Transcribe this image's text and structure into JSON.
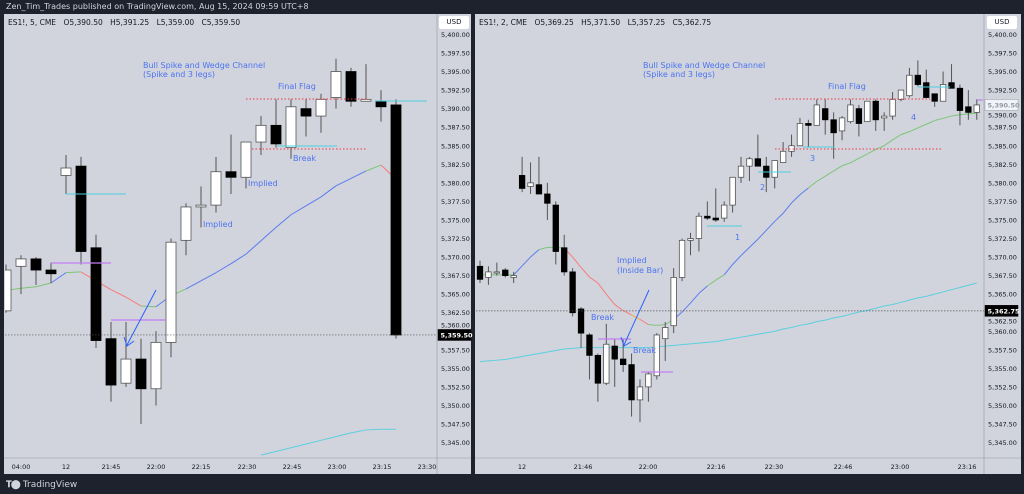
{
  "header": {
    "publisher": "Zen_Tim_Trades published on TradingView.com, Aug 15, 2024 09:59 UTC+8"
  },
  "footer": {
    "brand": "TradingView"
  },
  "colors": {
    "bull_candle": "#ffffff",
    "bear_candle": "#000000",
    "annotation": "#4c73f0",
    "resistance_dotted": "#f23645",
    "support_line": "#4dd0e1",
    "inside_bar_line": "#c27cf5",
    "slow_ma": "#5ccfe0",
    "ema_up": "#7cc576",
    "ema_fast_up": "#5b7cf0",
    "ema_down": "#f77c7c",
    "ema_flat": "#f5a742",
    "background": "#d1d4dc"
  },
  "chart_data": [
    {
      "type": "candlestick",
      "legend": {
        "symbol": "ES1!, 5, CME",
        "open": "O5,390.50",
        "high": "H5,391.25",
        "low": "L5,359.00",
        "close": "C5,359.50"
      },
      "currency": "USD",
      "ylim": [
        5343.5,
        5401
      ],
      "y_ticks": [
        "5,400.00",
        "5,397.50",
        "5,395.00",
        "5,392.50",
        "5,390.00",
        "5,387.50",
        "5,385.00",
        "5,382.50",
        "5,380.00",
        "5,377.50",
        "5,375.00",
        "5,372.50",
        "5,370.00",
        "5,367.50",
        "5,365.00",
        "5,362.50",
        "5,360.00",
        "5,357.50",
        "5,355.00",
        "5,352.50",
        "5,350.00",
        "5,347.50",
        "5,345.00"
      ],
      "x_ticks": [
        "04:00",
        "12",
        "21:45",
        "22:00",
        "22:15",
        "22:30",
        "22:45",
        "23:00",
        "23:15",
        "23:30"
      ],
      "last_price": "5,359.50",
      "last_price_value": 5359.5,
      "candles_ohlc": [
        [
          5362.75,
          5369,
          5362.5,
          5368.25
        ],
        [
          5368.75,
          5370.25,
          5365,
          5369.75
        ],
        [
          5369.75,
          5370,
          5366.25,
          5368.25
        ],
        [
          5368.25,
          5369.25,
          5366.5,
          5367.75
        ],
        [
          5381,
          5383.75,
          5378.5,
          5382
        ],
        [
          5382.25,
          5383.5,
          5369,
          5370.75
        ],
        [
          5371.25,
          5373,
          5357.75,
          5358.75
        ],
        [
          5359,
          5361.25,
          5350.5,
          5352.75
        ],
        [
          5353,
          5361.25,
          5352.5,
          5356.25
        ],
        [
          5356.25,
          5359,
          5347.5,
          5352.25
        ],
        [
          5352.25,
          5360,
          5350,
          5358.5
        ],
        [
          5358.5,
          5372.5,
          5356.5,
          5372
        ],
        [
          5372.25,
          5377.25,
          5370.25,
          5376.75
        ],
        [
          5376.75,
          5379.5,
          5374,
          5377
        ],
        [
          5377,
          5383.5,
          5376,
          5381.5
        ],
        [
          5381.5,
          5386.5,
          5378.5,
          5380.75
        ],
        [
          5380.75,
          5385.5,
          5379.25,
          5385.5
        ],
        [
          5385.5,
          5389,
          5383.75,
          5387.75
        ],
        [
          5387.75,
          5391.25,
          5384.75,
          5385.25
        ],
        [
          5384.75,
          5391.25,
          5383.25,
          5390.25
        ],
        [
          5390,
          5391.25,
          5386.25,
          5389
        ],
        [
          5389,
          5392,
          5386.75,
          5391.25
        ],
        [
          5391.5,
          5396.75,
          5390,
          5395
        ],
        [
          5395,
          5395.5,
          5390.25,
          5391
        ],
        [
          5391,
          5396,
          5391,
          5391.25
        ],
        [
          5391,
          5392.5,
          5388.25,
          5390.25
        ],
        [
          5390.5,
          5391.25,
          5359,
          5359.5
        ]
      ],
      "ema": [
        5365.5,
        5365.8,
        5366,
        5366.5,
        5367.9,
        5368,
        5366.8,
        5365.6,
        5364.6,
        5363.4,
        5363.3,
        5364.8,
        5365.7,
        5366.8,
        5367.9,
        5369.1,
        5370.4,
        5372.2,
        5374,
        5375.7,
        5376.9,
        5378.1,
        5379.6,
        5380.6,
        5381.6,
        5382.4,
        5380.5
      ],
      "slow_ma": [
        null,
        null,
        null,
        null,
        null,
        null,
        null,
        null,
        null,
        null,
        null,
        null,
        null,
        null,
        null,
        null,
        null,
        5343.3,
        5343.8,
        5344.3,
        5344.8,
        5345.3,
        5345.8,
        5346.3,
        5346.7,
        5346.8,
        5346.8
      ],
      "annotations": {
        "title": "Bull Spike and Wedge Channel",
        "subtitle": "(Spike and 3 legs)",
        "final_flag": "Final Flag",
        "break": "Break",
        "implied_1": "Implied",
        "implied_2": "Implied"
      }
    },
    {
      "type": "candlestick",
      "legend": {
        "symbol": "ES1!, 2, CME",
        "open": "O5,369.25",
        "high": "H5,371.50",
        "low": "L5,357.25",
        "close": "C5,362.75"
      },
      "currency": "USD",
      "ylim": [
        5343.5,
        5401
      ],
      "y_ticks": [
        "5,400.00",
        "5,397.50",
        "5,395.00",
        "5,392.50",
        "5,390.00",
        "5,387.50",
        "5,385.00",
        "5,382.50",
        "5,380.00",
        "5,377.50",
        "5,375.00",
        "5,372.50",
        "5,370.00",
        "5,367.50",
        "5,365.00",
        "5,362.50",
        "5,360.00",
        "5,357.50",
        "5,355.00",
        "5,352.50",
        "5,350.00",
        "5,347.50",
        "5,345.00"
      ],
      "x_ticks": [
        "12",
        "21:46",
        "22:00",
        "22:16",
        "22:30",
        "22:46",
        "23:00",
        "23:16"
      ],
      "crosshair_price": "5,362.75",
      "crosshair_price_value": 5362.75,
      "last_price": "5,390.50",
      "last_price_value": 5390.5,
      "candles_ohlc": [
        [
          5368.75,
          5369.5,
          5366.5,
          5367
        ],
        [
          5367.25,
          5368.75,
          5366.25,
          5368
        ],
        [
          5368,
          5369.25,
          5367.5,
          5368
        ],
        [
          5368.25,
          5368.5,
          5367.25,
          5367.5
        ],
        [
          5367.25,
          5368,
          5366.5,
          5367.5
        ],
        [
          5381,
          5383.5,
          5378.75,
          5379.25
        ],
        [
          5379.5,
          5382.75,
          5378.5,
          5380
        ],
        [
          5379.75,
          5383.5,
          5378.5,
          5378.5
        ],
        [
          5378.5,
          5380,
          5375,
          5377.25
        ],
        [
          5377,
          5377.5,
          5369,
          5370.75
        ],
        [
          5371.25,
          5373,
          5367.5,
          5368
        ],
        [
          5368,
          5368.5,
          5362,
          5362.5
        ],
        [
          5363,
          5363.25,
          5357.75,
          5359.75
        ],
        [
          5359.5,
          5359.75,
          5353.5,
          5356.75
        ],
        [
          5356.75,
          5357,
          5350.5,
          5353
        ],
        [
          5353,
          5361,
          5352.75,
          5358.25
        ],
        [
          5358,
          5359,
          5352.5,
          5356.25
        ],
        [
          5356.25,
          5359,
          5354.5,
          5355.5
        ],
        [
          5355.5,
          5357,
          5348.5,
          5350.75
        ],
        [
          5350.75,
          5353.5,
          5347.75,
          5352.5
        ],
        [
          5352.5,
          5354.5,
          5350.5,
          5354.25
        ],
        [
          5354,
          5359.75,
          5353.5,
          5359.5
        ],
        [
          5359,
          5361.25,
          5356,
          5360.5
        ],
        [
          5360.75,
          5368.5,
          5359.75,
          5367.25
        ],
        [
          5367.25,
          5372.5,
          5366.75,
          5372.25
        ],
        [
          5372.25,
          5373.25,
          5370.25,
          5372.5
        ],
        [
          5372.5,
          5376,
          5370.75,
          5375.5
        ],
        [
          5375.5,
          5377.5,
          5375,
          5375.25
        ],
        [
          5375.25,
          5379.25,
          5374.75,
          5375
        ],
        [
          5375.25,
          5377.5,
          5374.75,
          5377
        ],
        [
          5377,
          5380.75,
          5376,
          5380.75
        ],
        [
          5380.75,
          5383.5,
          5380,
          5382.25
        ],
        [
          5382.25,
          5383.5,
          5380.25,
          5383.25
        ],
        [
          5383.25,
          5386.5,
          5382.25,
          5382.25
        ],
        [
          5382.25,
          5383.5,
          5378.75,
          5380.75
        ],
        [
          5380.75,
          5383,
          5379.25,
          5383
        ],
        [
          5382.75,
          5385.5,
          5382.75,
          5384.25
        ],
        [
          5384.25,
          5386.5,
          5383.5,
          5385
        ],
        [
          5385,
          5388.75,
          5385,
          5388
        ],
        [
          5388,
          5388.5,
          5384.75,
          5387.75
        ],
        [
          5387.75,
          5391.25,
          5387.75,
          5390.5
        ],
        [
          5390,
          5391.25,
          5386.5,
          5388.5
        ],
        [
          5388.5,
          5389.5,
          5383.25,
          5386.75
        ],
        [
          5387,
          5389,
          5385.75,
          5388.75
        ],
        [
          5388.25,
          5391.25,
          5388,
          5390.5
        ],
        [
          5390,
          5390.5,
          5386.25,
          5388
        ],
        [
          5388.25,
          5391,
          5388.25,
          5391
        ],
        [
          5391,
          5391.25,
          5387,
          5388.5
        ],
        [
          5388.75,
          5389.5,
          5387,
          5389
        ],
        [
          5389,
          5392.25,
          5388.5,
          5391.25
        ],
        [
          5391.25,
          5392.5,
          5391,
          5392.5
        ],
        [
          5391.75,
          5395.5,
          5391.5,
          5394.5
        ],
        [
          5394.5,
          5396.5,
          5393,
          5393.25
        ],
        [
          5393.5,
          5395.25,
          5391.5,
          5391.5
        ],
        [
          5392,
          5392,
          5390.25,
          5391
        ],
        [
          5391,
          5395,
          5391,
          5393.25
        ],
        [
          5393.5,
          5396,
          5392.75,
          5392.75
        ],
        [
          5392.75,
          5393.25,
          5387.75,
          5389.75
        ],
        [
          5390.25,
          5392.5,
          5388.5,
          5389.5
        ],
        [
          5389.5,
          5391.25,
          5388.5,
          5390.5
        ]
      ],
      "ema": [
        5367.6,
        5367.6,
        5367.6,
        5367.6,
        5367.6,
        5368.8,
        5370,
        5371,
        5371.3,
        5371.3,
        5371.2,
        5370,
        5368.6,
        5367.3,
        5366.5,
        5365,
        5363.6,
        5362.8,
        5362.2,
        5361.6,
        5360.9,
        5360.8,
        5360.9,
        5361.6,
        5362.6,
        5363.8,
        5365.1,
        5366.1,
        5366.9,
        5367.6,
        5369,
        5370.2,
        5371.3,
        5372.4,
        5373.6,
        5374.8,
        5375.9,
        5377.3,
        5378.4,
        5379.3,
        5380.2,
        5380.9,
        5381.6,
        5382.3,
        5382.7,
        5383.3,
        5383.9,
        5384.5,
        5385,
        5385.8,
        5386.5,
        5386.9,
        5387.4,
        5387.9,
        5388.4,
        5388.7,
        5389,
        5389.2,
        5389.3,
        5389.4
      ],
      "slow_ma": [
        5355.9,
        5356.0,
        5356.1,
        5356.2,
        5356.4,
        5356.6,
        5356.8,
        5357.0,
        5357.2,
        5357.4,
        5357.6,
        5357.7,
        5357.8,
        5357.8,
        5357.8,
        5357.8,
        5357.8,
        5357.8,
        5357.8,
        5357.8,
        5357.8,
        5357.9,
        5358.0,
        5358.1,
        5358.2,
        5358.3,
        5358.4,
        5358.5,
        5358.6,
        5358.8,
        5359.0,
        5359.2,
        5359.4,
        5359.6,
        5359.8,
        5360.0,
        5360.3,
        5360.5,
        5360.8,
        5361.0,
        5361.3,
        5361.5,
        5361.8,
        5362.0,
        5362.3,
        5362.6,
        5362.8,
        5363.1,
        5363.4,
        5363.6,
        5363.9,
        5364.2,
        5364.5,
        5364.7,
        5365.0,
        5365.3,
        5365.6,
        5365.9,
        5366.2,
        5366.5
      ],
      "annotations": {
        "title": "Bull Spike and Wedge Channel",
        "subtitle": "(Spike and 3 legs)",
        "final_flag": "Final Flag",
        "break_1": "Break",
        "break_2": "Break",
        "implied": "Implied",
        "implied_sub": "(Inside Bar)",
        "leg_1": "1",
        "leg_2": "2",
        "leg_3": "3",
        "leg_4": "4"
      }
    }
  ]
}
